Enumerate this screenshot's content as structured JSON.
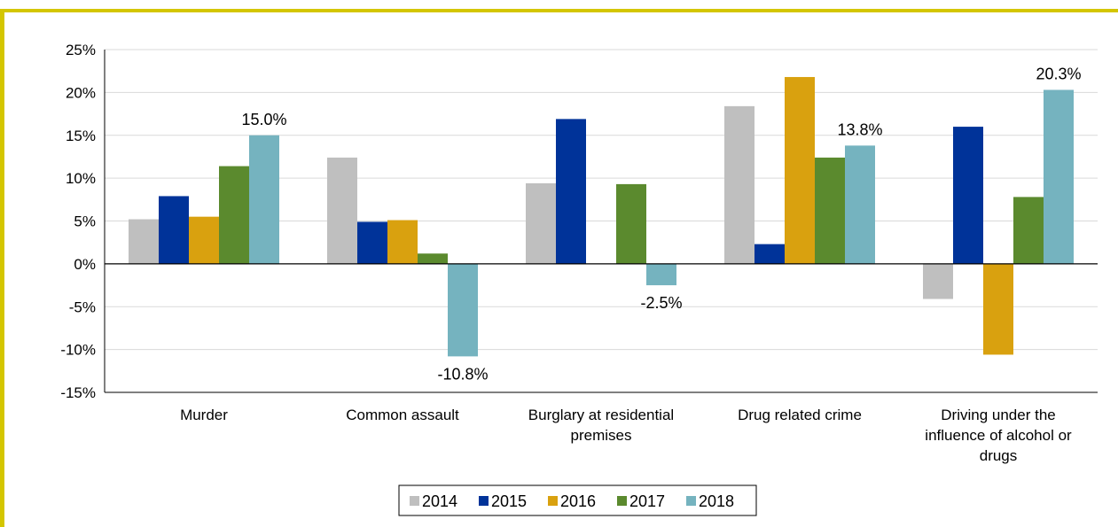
{
  "colors": {
    "frame": "#d4c600",
    "grid": "#d9d9d9",
    "axis": "#000000"
  },
  "chart_data": {
    "type": "bar",
    "categories": [
      [
        "Murder"
      ],
      [
        "Common assault"
      ],
      [
        "Burglary at residential",
        "premises"
      ],
      [
        "Drug related crime"
      ],
      [
        "Driving under the",
        "influence of alcohol or",
        "drugs"
      ]
    ],
    "series": [
      {
        "name": "2014",
        "color": "#bfbfbf",
        "values": [
          5.2,
          12.4,
          9.4,
          18.4,
          -4.1
        ]
      },
      {
        "name": "2015",
        "color": "#003399",
        "values": [
          7.9,
          4.9,
          16.9,
          2.3,
          16.0
        ]
      },
      {
        "name": "2016",
        "color": "#d9a10f",
        "values": [
          5.5,
          5.1,
          0,
          21.8,
          -10.6
        ]
      },
      {
        "name": "2017",
        "color": "#5b8a2e",
        "values": [
          11.4,
          1.2,
          9.3,
          12.4,
          7.8
        ]
      },
      {
        "name": "2018",
        "color": "#75b3bf",
        "values": [
          15.0,
          -10.8,
          -2.5,
          13.8,
          20.3
        ]
      }
    ],
    "data_labels": [
      "15.0%",
      "-10.8%",
      "-2.5%",
      "13.8%",
      "20.3%"
    ],
    "ylim": [
      -15,
      25
    ],
    "yticks": [
      "-15%",
      "-10%",
      "-5%",
      "0%",
      "5%",
      "10%",
      "15%",
      "20%",
      "25%"
    ],
    "ytick_values": [
      -15,
      -10,
      -5,
      0,
      5,
      10,
      15,
      20,
      25
    ],
    "grid": true,
    "legend": "bottom"
  }
}
